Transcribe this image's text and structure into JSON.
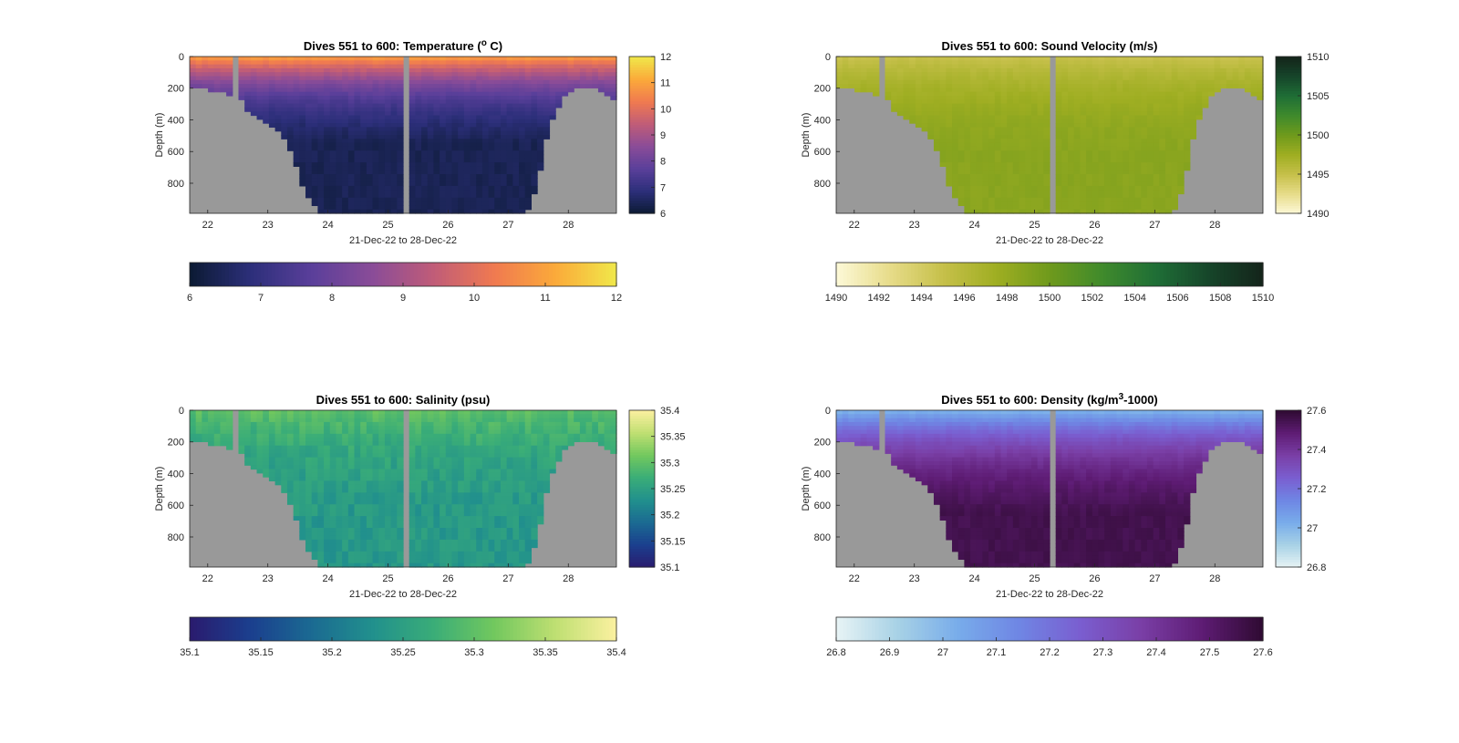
{
  "figure": {
    "background": "#ffffff",
    "land_color": "#999999"
  },
  "chart_data": [
    {
      "type": "heatmap",
      "title": "Dives 551 to 600: Temperature (",
      "title_sup": "o",
      "title_tail": " C)",
      "xlabel": "21-Dec-22 to 28-Dec-22",
      "ylabel": "Depth (m)",
      "xticks": [
        "22",
        "23",
        "24",
        "25",
        "26",
        "27",
        "28"
      ],
      "xlim": [
        21.7,
        28.8
      ],
      "yticks": [
        "0",
        "200",
        "400",
        "600",
        "800"
      ],
      "ylim": [
        0,
        990
      ],
      "colorbar": {
        "min": 6,
        "max": 12,
        "side_ticks": [
          "12",
          "11",
          "10",
          "9",
          "8",
          "7",
          "6"
        ],
        "bottom_ticks": [
          "6",
          "7",
          "8",
          "9",
          "10",
          "11",
          "12"
        ],
        "colors": [
          "#0b1a33",
          "#2c2f7a",
          "#5a3f9a",
          "#8a4c98",
          "#c05c78",
          "#f07a50",
          "#fbaa3a",
          "#f0e84a"
        ]
      },
      "profile": {
        "surface": 11.0,
        "deep": 6.4,
        "scale_depth": 550,
        "noise": 0.25
      }
    },
    {
      "type": "heatmap",
      "title": "Dives 551 to 600: Sound Velocity (m/s)",
      "xlabel": "21-Dec-22 to 28-Dec-22",
      "ylabel": "Depth (m)",
      "xticks": [
        "22",
        "23",
        "24",
        "25",
        "26",
        "27",
        "28"
      ],
      "xlim": [
        21.7,
        28.8
      ],
      "yticks": [
        "0",
        "200",
        "400",
        "600",
        "800"
      ],
      "ylim": [
        0,
        990
      ],
      "colorbar": {
        "min": 1490,
        "max": 1510,
        "side_ticks": [
          "1510",
          "1505",
          "1500",
          "1495",
          "1490"
        ],
        "bottom_ticks": [
          "1490",
          "1492",
          "1494",
          "1496",
          "1498",
          "1500",
          "1502",
          "1504",
          "1506",
          "1508",
          "1510"
        ],
        "colors": [
          "#fdf9d8",
          "#e7dc8a",
          "#c6c04a",
          "#9fae22",
          "#6f9a1c",
          "#3f8a2c",
          "#1f6e36",
          "#16452a",
          "#14241a"
        ]
      },
      "profile": {
        "surface": 1494.8,
        "deep": 1498.6,
        "scale_depth": 600,
        "noise": 0.5
      }
    },
    {
      "type": "heatmap",
      "title": "Dives 551 to 600: Salinity (psu)",
      "xlabel": "21-Dec-22 to 28-Dec-22",
      "ylabel": "Depth (m)",
      "xticks": [
        "22",
        "23",
        "24",
        "25",
        "26",
        "27",
        "28"
      ],
      "xlim": [
        21.7,
        28.8
      ],
      "yticks": [
        "0",
        "200",
        "400",
        "600",
        "800"
      ],
      "ylim": [
        0,
        990
      ],
      "colorbar": {
        "min": 35.1,
        "max": 35.4,
        "side_ticks": [
          "35.4",
          "35.35",
          "35.3",
          "35.25",
          "35.2",
          "35.15",
          "35.1"
        ],
        "bottom_ticks": [
          "35.1",
          "35.15",
          "35.2",
          "35.25",
          "35.3",
          "35.35",
          "35.4"
        ],
        "colors": [
          "#2a1b6e",
          "#1b3f8e",
          "#1b6a92",
          "#21908d",
          "#3aad78",
          "#72c85e",
          "#bfdf72",
          "#fbf0a0"
        ]
      },
      "profile": {
        "surface": 35.3,
        "deep": 35.24,
        "scale_depth": 700,
        "noise": 0.03
      }
    },
    {
      "type": "heatmap",
      "title": "Dives 551 to 600: Density (kg/m",
      "title_sup": "3",
      "title_tail": "-1000)",
      "xlabel": "21-Dec-22 to 28-Dec-22",
      "ylabel": "Depth (m)",
      "xticks": [
        "22",
        "23",
        "24",
        "25",
        "26",
        "27",
        "28"
      ],
      "xlim": [
        21.7,
        28.8
      ],
      "yticks": [
        "0",
        "200",
        "400",
        "600",
        "800"
      ],
      "ylim": [
        0,
        990
      ],
      "colorbar": {
        "min": 26.8,
        "max": 27.6,
        "side_ticks": [
          "27.6",
          "27.4",
          "27.2",
          "27",
          "26.8"
        ],
        "bottom_ticks": [
          "26.8",
          "26.9",
          "27",
          "27.1",
          "27.2",
          "27.3",
          "27.4",
          "27.5",
          "27.6"
        ],
        "colors": [
          "#e8f4f5",
          "#a8d2e6",
          "#78acea",
          "#6f86e4",
          "#7a5ed0",
          "#7a3fa6",
          "#5e1c74",
          "#2f0b32"
        ]
      },
      "profile": {
        "surface": 27.0,
        "deep": 27.55,
        "scale_depth": 650,
        "noise": 0.03
      }
    }
  ]
}
